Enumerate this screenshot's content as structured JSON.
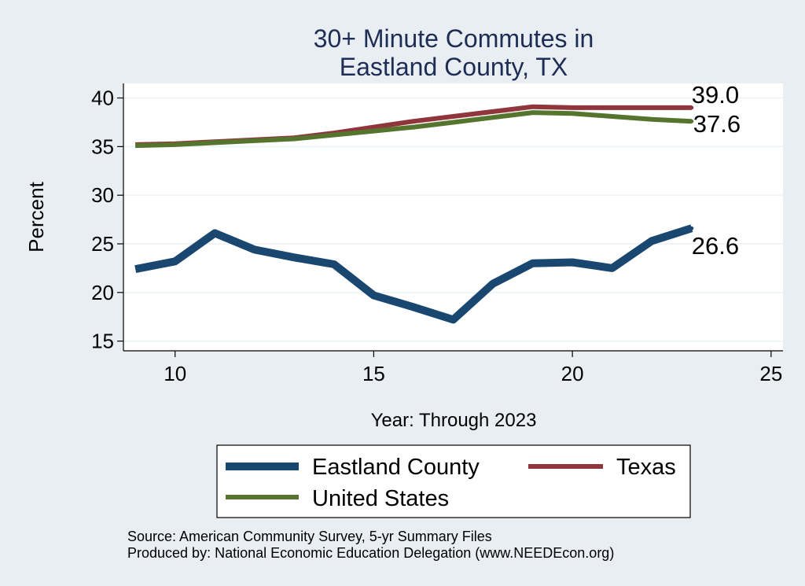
{
  "chart_data": {
    "type": "line",
    "title_line1": "30+ Minute Commutes in",
    "title_line2": "Eastland County, TX",
    "xlabel": "Year: Through 2023",
    "ylabel": "Percent",
    "xlim": [
      8.7,
      25.3
    ],
    "ylim": [
      14,
      41.5
    ],
    "x_ticks": [
      10,
      15,
      20,
      25
    ],
    "y_ticks": [
      15,
      20,
      25,
      30,
      35,
      40
    ],
    "grid": true,
    "legend_position": "bottom",
    "series": [
      {
        "name": "Eastland County",
        "color": "#1a476f",
        "x": [
          9,
          10,
          11,
          12,
          13,
          14,
          15,
          16,
          17,
          18,
          19,
          20,
          21,
          22,
          23
        ],
        "y": [
          22.4,
          23.2,
          26.1,
          24.4,
          23.6,
          22.9,
          19.7,
          18.5,
          17.2,
          20.9,
          23.0,
          23.1,
          22.5,
          25.3,
          26.6
        ],
        "end_label": "26.6"
      },
      {
        "name": "Texas",
        "color": "#90353b",
        "x": [
          9,
          10,
          11,
          12,
          13,
          14,
          15,
          16,
          17,
          18,
          19,
          20,
          21,
          22,
          23
        ],
        "y": [
          35.2,
          35.3,
          35.5,
          35.7,
          35.9,
          36.4,
          37.0,
          37.6,
          38.1,
          38.6,
          39.1,
          39.0,
          39.0,
          39.0,
          39.0
        ],
        "end_label": "39.0"
      },
      {
        "name": "United States",
        "color": "#55752f",
        "x": [
          9,
          10,
          11,
          12,
          13,
          14,
          15,
          16,
          17,
          18,
          19,
          20,
          21,
          22,
          23
        ],
        "y": [
          35.1,
          35.2,
          35.4,
          35.6,
          35.8,
          36.2,
          36.6,
          37.0,
          37.5,
          38.0,
          38.5,
          38.4,
          38.1,
          37.8,
          37.6
        ],
        "end_label": "37.6"
      }
    ],
    "legend_entries": [
      "Eastland County",
      "Texas",
      "United States"
    ],
    "note_line1": "Source: American Community Survey, 5-yr Summary Files",
    "note_line2": "Produced by: National Economic Education Delegation (www.NEEDEcon.org)"
  }
}
